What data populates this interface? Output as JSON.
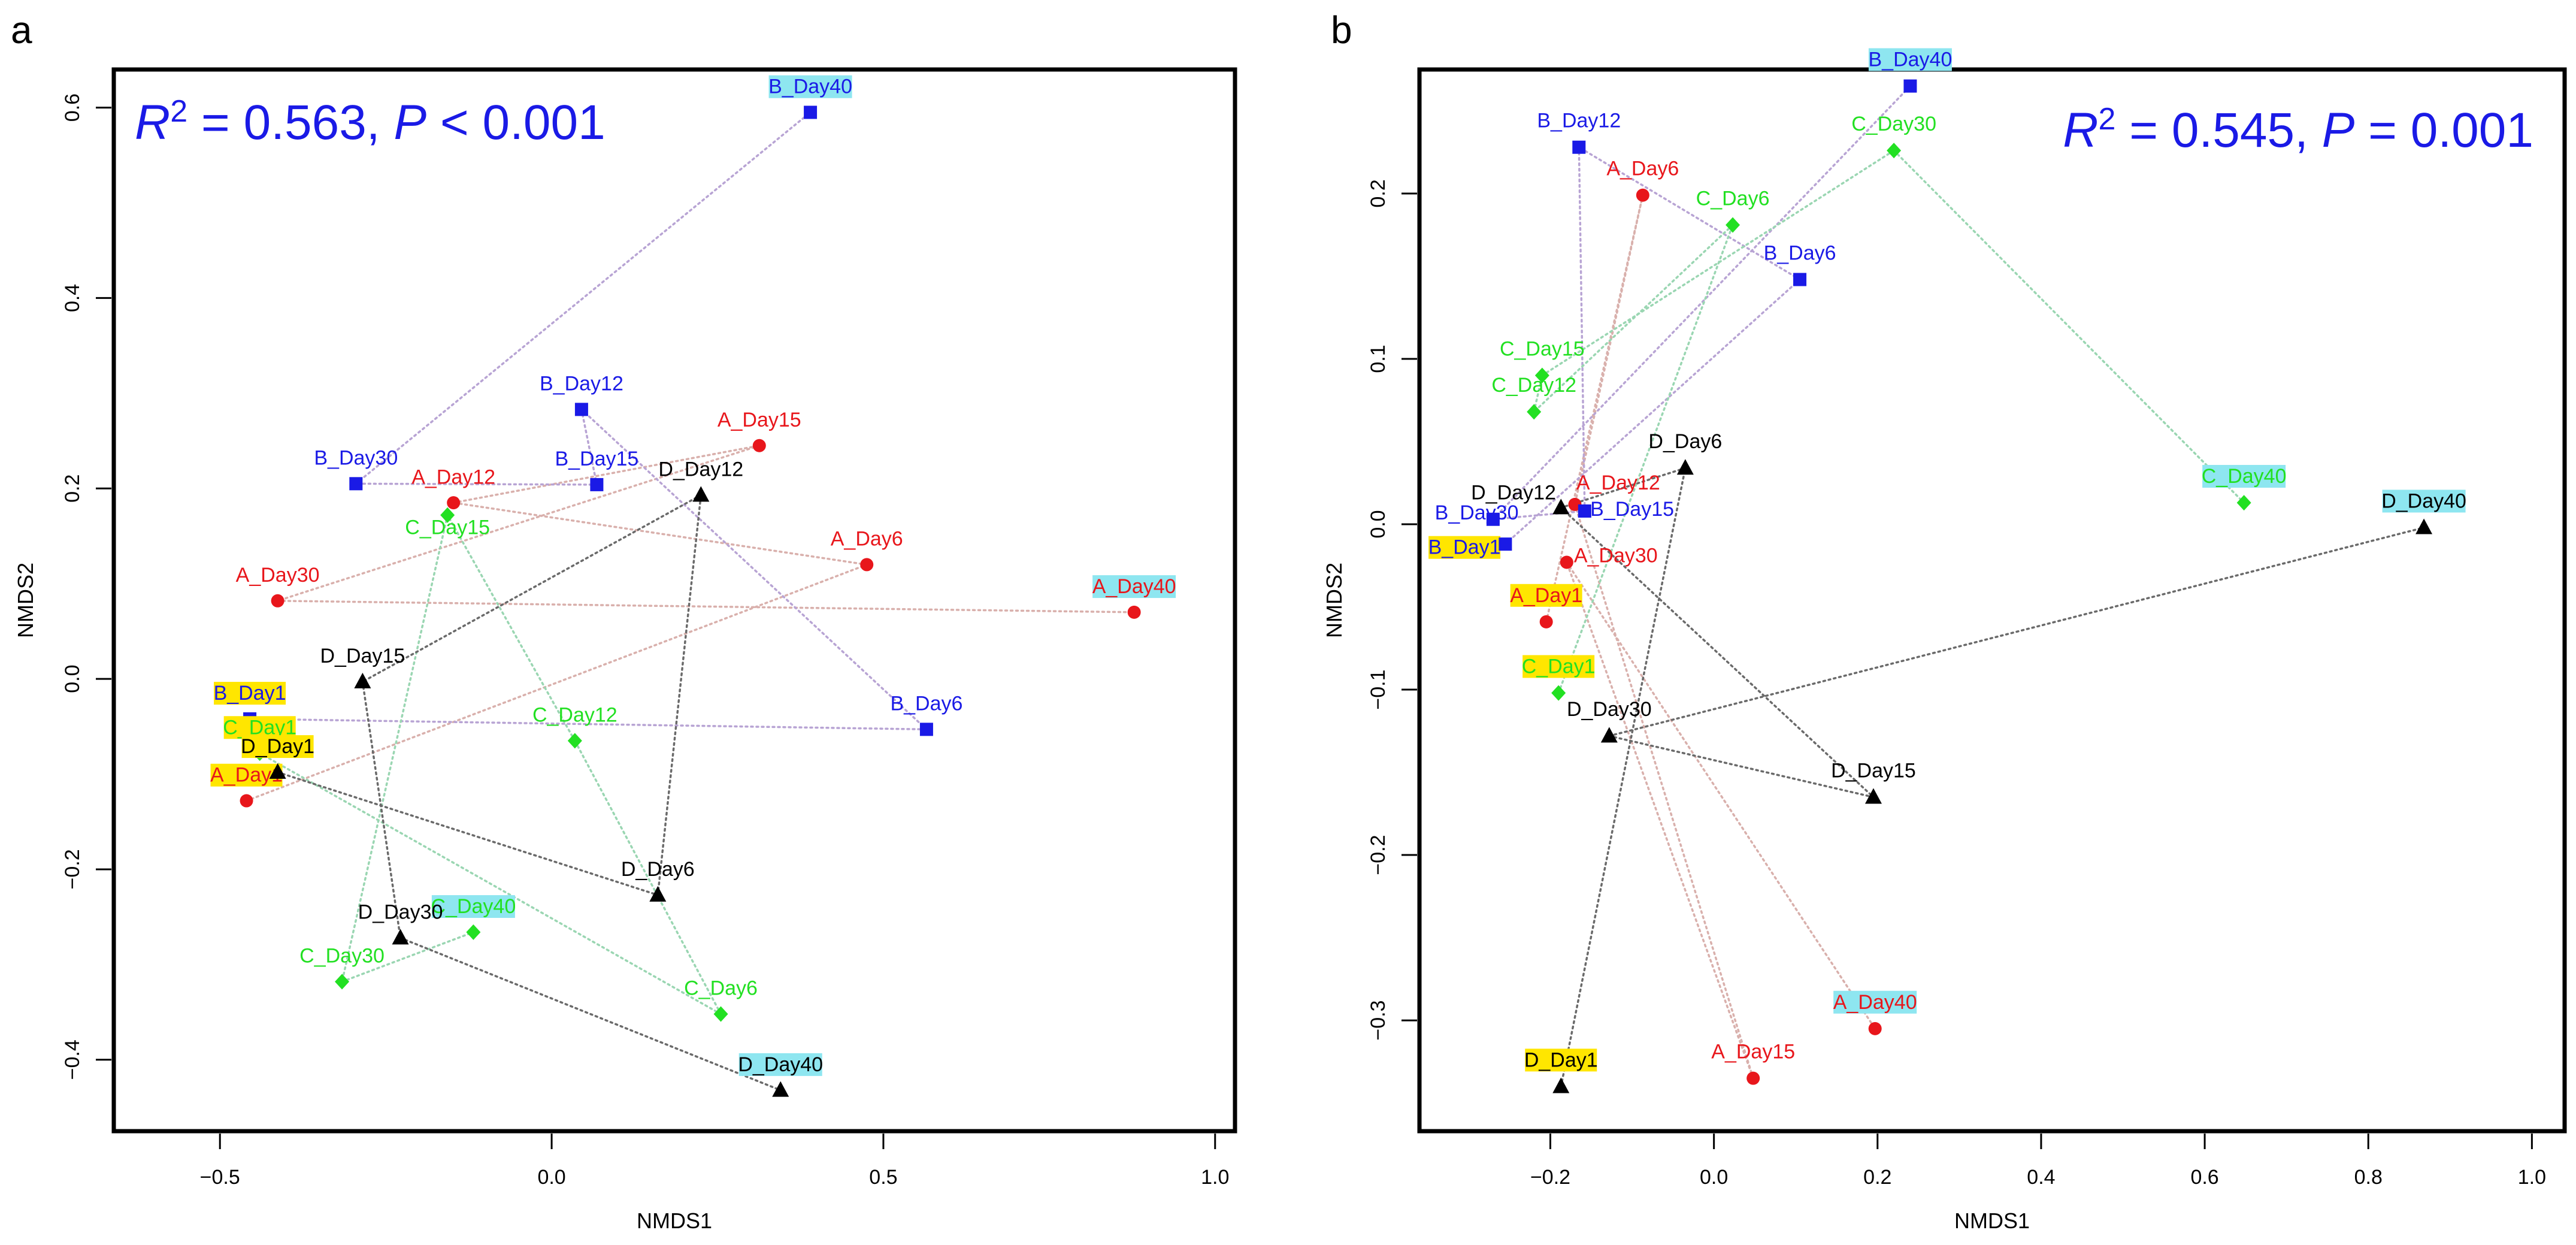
{
  "chart_data": [
    {
      "type": "scatter",
      "panel_label": "a",
      "xlabel": "NMDS1",
      "ylabel": "NMDS2",
      "xlim": [
        -0.66,
        1.03
      ],
      "ylim": [
        -0.475,
        0.64
      ],
      "xticks": [
        -0.5,
        0.0,
        0.5,
        1.0
      ],
      "xtick_labels": [
        "−0.5",
        "0.0",
        "0.5",
        "1.0"
      ],
      "yticks": [
        -0.4,
        -0.2,
        0.0,
        0.2,
        0.4,
        0.6
      ],
      "ytick_labels": [
        "−0.4",
        "−0.2",
        "0.0",
        "0.2",
        "0.4",
        "0.6"
      ],
      "annotation": {
        "prefix": "R",
        "sup": "2",
        "r2_text": " = 0.563, ",
        "p_sym": "P",
        "p_text": " < 0.001",
        "position": "top-left"
      },
      "points": [
        {
          "label": "A_Day1",
          "group": "A",
          "x": -0.46,
          "y": -0.128,
          "lx": -0.46,
          "ly": -0.108,
          "hl": "#ffe600"
        },
        {
          "label": "A_Day6",
          "group": "A",
          "x": 0.475,
          "y": 0.12,
          "lx": 0.475,
          "ly": 0.14
        },
        {
          "label": "A_Day12",
          "group": "A",
          "x": -0.148,
          "y": 0.185,
          "lx": -0.148,
          "ly": 0.205
        },
        {
          "label": "A_Day15",
          "group": "A",
          "x": 0.313,
          "y": 0.245,
          "lx": 0.313,
          "ly": 0.265
        },
        {
          "label": "A_Day30",
          "group": "A",
          "x": -0.413,
          "y": 0.082,
          "lx": -0.413,
          "ly": 0.102
        },
        {
          "label": "A_Day40",
          "group": "A",
          "x": 0.878,
          "y": 0.07,
          "lx": 0.878,
          "ly": 0.09,
          "hl": "#8ee6f0"
        },
        {
          "label": "B_Day1",
          "group": "B",
          "x": -0.455,
          "y": -0.042,
          "lx": -0.455,
          "ly": -0.022,
          "hl": "#ffe600"
        },
        {
          "label": "B_Day6",
          "group": "B",
          "x": 0.565,
          "y": -0.053,
          "lx": 0.565,
          "ly": -0.033
        },
        {
          "label": "B_Day12",
          "group": "B",
          "x": 0.045,
          "y": 0.283,
          "lx": 0.045,
          "ly": 0.303
        },
        {
          "label": "B_Day15",
          "group": "B",
          "x": 0.068,
          "y": 0.204,
          "lx": 0.068,
          "ly": 0.224
        },
        {
          "label": "B_Day30",
          "group": "B",
          "x": -0.295,
          "y": 0.205,
          "lx": -0.295,
          "ly": 0.225
        },
        {
          "label": "B_Day40",
          "group": "B",
          "x": 0.39,
          "y": 0.595,
          "lx": 0.39,
          "ly": 0.615,
          "hl": "#8ee6f0"
        },
        {
          "label": "C_Day1",
          "group": "C",
          "x": -0.44,
          "y": -0.078,
          "lx": -0.44,
          "ly": -0.058,
          "hl": "#ffe600"
        },
        {
          "label": "C_Day6",
          "group": "C",
          "x": 0.255,
          "y": -0.352,
          "lx": 0.255,
          "ly": -0.332
        },
        {
          "label": "C_Day12",
          "group": "C",
          "x": 0.035,
          "y": -0.065,
          "lx": 0.035,
          "ly": -0.045
        },
        {
          "label": "C_Day15",
          "group": "C",
          "x": -0.157,
          "y": 0.172,
          "lx": -0.157,
          "ly": 0.152
        },
        {
          "label": "C_Day30",
          "group": "C",
          "x": -0.316,
          "y": -0.318,
          "lx": -0.316,
          "ly": -0.298
        },
        {
          "label": "C_Day40",
          "group": "C",
          "x": -0.118,
          "y": -0.266,
          "lx": -0.118,
          "ly": -0.246,
          "hl": "#8ee6f0"
        },
        {
          "label": "D_Day1",
          "group": "D",
          "x": -0.413,
          "y": -0.098,
          "lx": -0.413,
          "ly": -0.078,
          "hl": "#ffe600"
        },
        {
          "label": "D_Day6",
          "group": "D",
          "x": 0.16,
          "y": -0.227,
          "lx": 0.16,
          "ly": -0.207
        },
        {
          "label": "D_Day12",
          "group": "D",
          "x": 0.225,
          "y": 0.193,
          "lx": 0.225,
          "ly": 0.213
        },
        {
          "label": "D_Day15",
          "group": "D",
          "x": -0.285,
          "y": -0.003,
          "lx": -0.285,
          "ly": 0.017
        },
        {
          "label": "D_Day30",
          "group": "D",
          "x": -0.228,
          "y": -0.272,
          "lx": -0.228,
          "ly": -0.252
        },
        {
          "label": "D_Day40",
          "group": "D",
          "x": 0.345,
          "y": -0.432,
          "lx": 0.345,
          "ly": -0.412,
          "hl": "#8ee6f0"
        }
      ],
      "segments": [
        {
          "from": "A_Day1",
          "to": "A_Day6",
          "group": "A"
        },
        {
          "from": "A_Day6",
          "to": "A_Day12",
          "group": "A"
        },
        {
          "from": "A_Day12",
          "to": "A_Day15",
          "group": "A"
        },
        {
          "from": "A_Day15",
          "to": "A_Day30",
          "group": "A"
        },
        {
          "from": "A_Day30",
          "to": "A_Day40",
          "group": "A"
        },
        {
          "from": "B_Day1",
          "to": "B_Day6",
          "group": "B"
        },
        {
          "from": "B_Day6",
          "to": "B_Day12",
          "group": "B"
        },
        {
          "from": "B_Day12",
          "to": "B_Day15",
          "group": "B"
        },
        {
          "from": "B_Day15",
          "to": "B_Day30",
          "group": "B"
        },
        {
          "from": "B_Day30",
          "to": "B_Day40",
          "group": "B"
        },
        {
          "from": "C_Day1",
          "to": "C_Day6",
          "group": "C"
        },
        {
          "from": "C_Day6",
          "to": "C_Day12",
          "group": "C"
        },
        {
          "from": "C_Day12",
          "to": "C_Day15",
          "group": "C"
        },
        {
          "from": "C_Day15",
          "to": "C_Day30",
          "group": "C"
        },
        {
          "from": "C_Day30",
          "to": "C_Day40",
          "group": "C"
        },
        {
          "from": "D_Day1",
          "to": "D_Day6",
          "group": "D"
        },
        {
          "from": "D_Day6",
          "to": "D_Day12",
          "group": "D"
        },
        {
          "from": "D_Day12",
          "to": "D_Day15",
          "group": "D"
        },
        {
          "from": "D_Day15",
          "to": "D_Day30",
          "group": "D"
        },
        {
          "from": "D_Day30",
          "to": "D_Day40",
          "group": "D"
        }
      ]
    },
    {
      "type": "scatter",
      "panel_label": "b",
      "xlabel": "NMDS1",
      "ylabel": "NMDS2",
      "xlim": [
        -0.36,
        1.04
      ],
      "ylim": [
        -0.367,
        0.275
      ],
      "xticks": [
        -0.2,
        0.0,
        0.2,
        0.4,
        0.6,
        0.8,
        1.0
      ],
      "xtick_labels": [
        "−0.2",
        "0.0",
        "0.2",
        "0.4",
        "0.6",
        "0.8",
        "1.0"
      ],
      "yticks": [
        -0.3,
        -0.2,
        -0.1,
        0.0,
        0.1,
        0.2
      ],
      "ytick_labels": [
        "−0.3",
        "−0.2",
        "−0.1",
        "0.0",
        "0.1",
        "0.2"
      ],
      "annotation": {
        "prefix": "R",
        "sup": "2",
        "r2_text": " = 0.545, ",
        "p_sym": "P",
        "p_text": " = 0.001",
        "position": "top-right"
      },
      "points": [
        {
          "label": "A_Day1",
          "group": "A",
          "x": -0.205,
          "y": -0.059,
          "lx": -0.205,
          "ly": -0.047,
          "hl": "#ffe600"
        },
        {
          "label": "A_Day6",
          "group": "A",
          "x": -0.087,
          "y": 0.199,
          "lx": -0.087,
          "ly": 0.211
        },
        {
          "label": "A_Day12",
          "group": "A",
          "x": -0.17,
          "y": 0.012,
          "lx": -0.117,
          "ly": 0.021
        },
        {
          "label": "A_Day15",
          "group": "A",
          "x": 0.048,
          "y": -0.335,
          "lx": 0.048,
          "ly": -0.323
        },
        {
          "label": "A_Day30",
          "group": "A",
          "x": -0.18,
          "y": -0.023,
          "lx": -0.12,
          "ly": -0.023
        },
        {
          "label": "A_Day40",
          "group": "A",
          "x": 0.197,
          "y": -0.305,
          "lx": 0.197,
          "ly": -0.293,
          "hl": "#8ee6f0"
        },
        {
          "label": "B_Day1",
          "group": "B",
          "x": -0.255,
          "y": -0.012,
          "lx": -0.305,
          "ly": -0.018,
          "hl": "#ffe600"
        },
        {
          "label": "B_Day6",
          "group": "B",
          "x": 0.105,
          "y": 0.148,
          "lx": 0.105,
          "ly": 0.16
        },
        {
          "label": "B_Day12",
          "group": "B",
          "x": -0.165,
          "y": 0.228,
          "lx": -0.165,
          "ly": 0.24
        },
        {
          "label": "B_Day15",
          "group": "B",
          "x": -0.158,
          "y": 0.008,
          "lx": -0.1,
          "ly": 0.005
        },
        {
          "label": "B_Day30",
          "group": "B",
          "x": -0.27,
          "y": 0.003,
          "lx": -0.29,
          "ly": 0.003
        },
        {
          "label": "B_Day40",
          "group": "B",
          "x": 0.24,
          "y": 0.265,
          "lx": 0.24,
          "ly": 0.277,
          "hl": "#8ee6f0"
        },
        {
          "label": "C_Day1",
          "group": "C",
          "x": -0.19,
          "y": -0.102,
          "lx": -0.19,
          "ly": -0.09,
          "hl": "#ffe600"
        },
        {
          "label": "C_Day6",
          "group": "C",
          "x": 0.023,
          "y": 0.181,
          "lx": 0.023,
          "ly": 0.193
        },
        {
          "label": "C_Day12",
          "group": "C",
          "x": -0.22,
          "y": 0.068,
          "lx": -0.22,
          "ly": 0.08
        },
        {
          "label": "C_Day15",
          "group": "C",
          "x": -0.21,
          "y": 0.09,
          "lx": -0.21,
          "ly": 0.102
        },
        {
          "label": "C_Day30",
          "group": "C",
          "x": 0.22,
          "y": 0.226,
          "lx": 0.22,
          "ly": 0.238
        },
        {
          "label": "C_Day40",
          "group": "C",
          "x": 0.648,
          "y": 0.013,
          "lx": 0.648,
          "ly": 0.025,
          "hl": "#8ee6f0"
        },
        {
          "label": "D_Day1",
          "group": "D",
          "x": -0.187,
          "y": -0.34,
          "lx": -0.187,
          "ly": -0.328,
          "hl": "#ffe600"
        },
        {
          "label": "D_Day6",
          "group": "D",
          "x": -0.035,
          "y": 0.034,
          "lx": -0.035,
          "ly": 0.046
        },
        {
          "label": "D_Day12",
          "group": "D",
          "x": -0.187,
          "y": 0.01,
          "lx": -0.245,
          "ly": 0.015
        },
        {
          "label": "D_Day15",
          "group": "D",
          "x": 0.195,
          "y": -0.165,
          "lx": 0.195,
          "ly": -0.153
        },
        {
          "label": "D_Day30",
          "group": "D",
          "x": -0.128,
          "y": -0.128,
          "lx": -0.128,
          "ly": -0.116
        },
        {
          "label": "D_Day40",
          "group": "D",
          "x": 0.868,
          "y": -0.002,
          "lx": 0.868,
          "ly": 0.01,
          "hl": "#8ee6f0"
        }
      ],
      "segments": [
        {
          "from": "A_Day1",
          "to": "A_Day6",
          "group": "A"
        },
        {
          "from": "A_Day6",
          "to": "A_Day12",
          "group": "A"
        },
        {
          "from": "A_Day12",
          "to": "A_Day15",
          "group": "A"
        },
        {
          "from": "A_Day15",
          "to": "A_Day30",
          "group": "A"
        },
        {
          "from": "A_Day30",
          "to": "A_Day40",
          "group": "A"
        },
        {
          "from": "B_Day1",
          "to": "B_Day6",
          "group": "B"
        },
        {
          "from": "B_Day6",
          "to": "B_Day12",
          "group": "B"
        },
        {
          "from": "B_Day12",
          "to": "B_Day15",
          "group": "B"
        },
        {
          "from": "B_Day15",
          "to": "B_Day30",
          "group": "B"
        },
        {
          "from": "B_Day30",
          "to": "B_Day40",
          "group": "B"
        },
        {
          "from": "C_Day1",
          "to": "C_Day6",
          "group": "C"
        },
        {
          "from": "C_Day6",
          "to": "C_Day12",
          "group": "C"
        },
        {
          "from": "C_Day12",
          "to": "C_Day15",
          "group": "C"
        },
        {
          "from": "C_Day15",
          "to": "C_Day30",
          "group": "C"
        },
        {
          "from": "C_Day30",
          "to": "C_Day40",
          "group": "C"
        },
        {
          "from": "D_Day1",
          "to": "D_Day6",
          "group": "D"
        },
        {
          "from": "D_Day6",
          "to": "D_Day12",
          "group": "D"
        },
        {
          "from": "D_Day12",
          "to": "D_Day15",
          "group": "D"
        },
        {
          "from": "D_Day15",
          "to": "D_Day30",
          "group": "D"
        },
        {
          "from": "D_Day30",
          "to": "D_Day40",
          "group": "D"
        }
      ]
    }
  ],
  "groups": {
    "A": {
      "marker": "circle",
      "color": "#e8161b",
      "line_color": "#d9b0ac"
    },
    "B": {
      "marker": "square",
      "color": "#1a1ae6",
      "line_color": "#b8a4d4"
    },
    "C": {
      "marker": "diamond",
      "color": "#22e022",
      "line_color": "#9ad6b2"
    },
    "D": {
      "marker": "triangle",
      "color": "#000000",
      "line_color": "#6a6a6a"
    }
  }
}
